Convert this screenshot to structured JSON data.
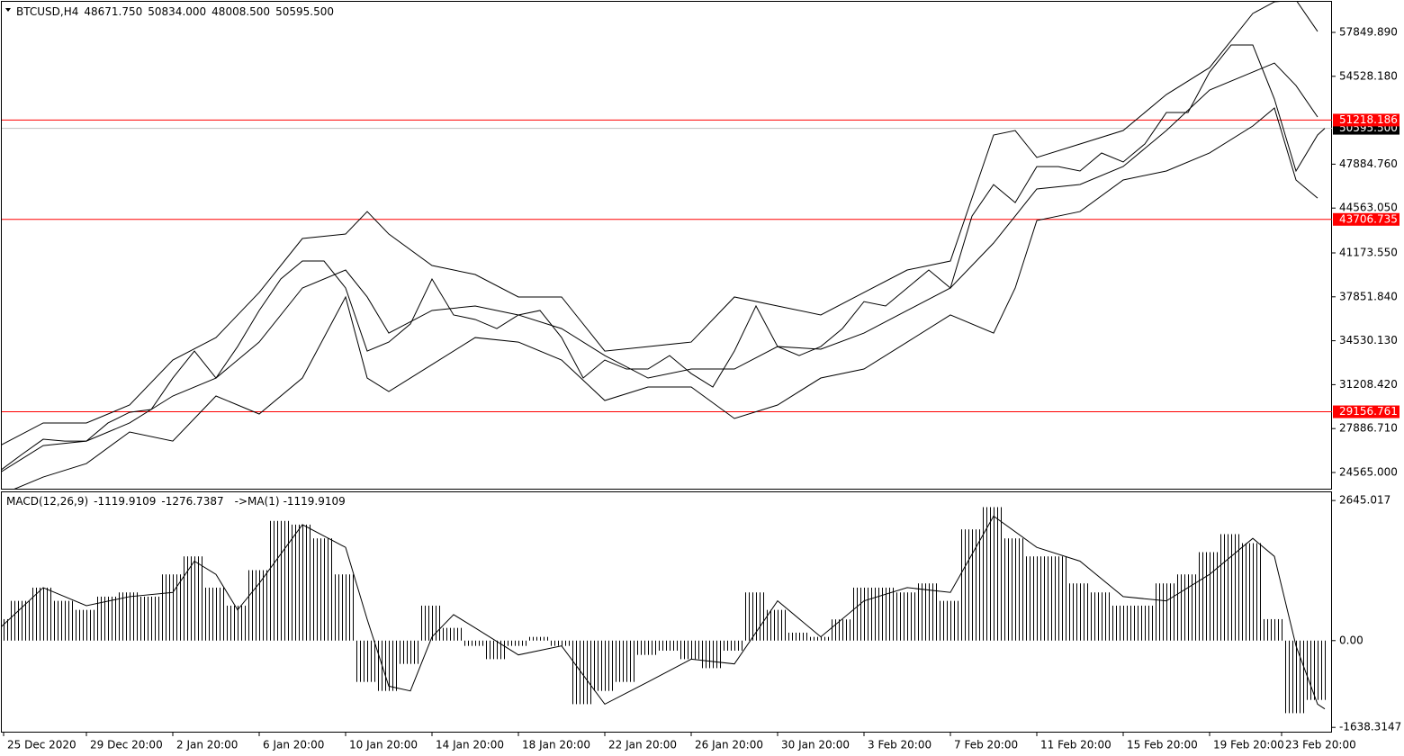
{
  "chart_data": [
    {
      "type": "line",
      "title": "BTCUSD,H4",
      "header_values": [
        {
          "value": 48671.75,
          "label": "48671.750"
        },
        {
          "value": 50834,
          "label": "50834.000"
        },
        {
          "value": 48008.5,
          "label": "48008.500"
        },
        {
          "value": 50595.5,
          "label": "50595.500"
        }
      ],
      "xlim": [
        0,
        370
      ],
      "ylim": [
        23340,
        60164
      ],
      "xticks": [
        {
          "value": 1,
          "label": "25 Dec 2020"
        },
        {
          "value": 24,
          "label": "29 Dec 20:00"
        },
        {
          "value": 48,
          "label": "2 Jan 20:00"
        },
        {
          "value": 72,
          "label": "6 Jan 20:00"
        },
        {
          "value": 96,
          "label": "10 Jan 20:00"
        },
        {
          "value": 120,
          "label": "14 Jan 20:00"
        },
        {
          "value": 144,
          "label": "18 Jan 20:00"
        },
        {
          "value": 168,
          "label": "22 Jan 20:00"
        },
        {
          "value": 192,
          "label": "26 Jan 20:00"
        },
        {
          "value": 216,
          "label": "30 Jan 20:00"
        },
        {
          "value": 240,
          "label": "3 Feb 20:00"
        },
        {
          "value": 264,
          "label": "7 Feb 20:00"
        },
        {
          "value": 288,
          "label": "11 Feb 20:00"
        },
        {
          "value": 312,
          "label": "15 Feb 20:00"
        },
        {
          "value": 336,
          "label": "19 Feb 20:00"
        },
        {
          "value": 356,
          "label": "23 Feb 20:00"
        }
      ],
      "yticks": [
        {
          "value": 57849.89,
          "label": "57849.890"
        },
        {
          "value": 54528.18,
          "label": "54528.180"
        },
        {
          "value": 47884.76,
          "label": "47884.760"
        },
        {
          "value": 44563.05,
          "label": "44563.050"
        },
        {
          "value": 41173.55,
          "label": "41173.550"
        },
        {
          "value": 37851.84,
          "label": "37851.840"
        },
        {
          "value": 34530.13,
          "label": "34530.130"
        },
        {
          "value": 31208.42,
          "label": "31208.420"
        },
        {
          "value": 27886.71,
          "label": "27886.710"
        },
        {
          "value": 24565,
          "label": "24565.000"
        }
      ],
      "hlines": [
        {
          "value": 50595.5,
          "label": "50595.500",
          "color": "#c0c0c0"
        },
        {
          "value": 51218.186,
          "color": "#ff0000"
        },
        {
          "value": 43706.735,
          "color": "#ff0000"
        },
        {
          "value": 29156.761,
          "color": "#ff0000"
        }
      ],
      "series": [
        {
          "color": "#000000",
          "x": [
            0,
            6,
            12,
            18,
            24,
            30,
            36,
            42,
            48,
            54,
            60,
            66,
            72,
            78,
            84,
            90,
            96,
            102,
            108,
            114,
            120,
            126,
            132,
            138,
            144,
            150,
            156,
            162,
            168,
            174,
            180,
            186,
            192,
            198,
            204,
            210,
            216,
            222,
            228,
            234,
            240,
            246,
            252,
            258,
            264,
            270,
            276,
            282,
            288,
            294,
            300,
            306,
            312,
            318,
            324,
            330,
            336,
            342,
            348,
            354,
            360,
            366,
            368
          ],
          "values": [
            24700,
            25920,
            27080,
            26940,
            26940,
            28310,
            29120,
            29330,
            31710,
            33750,
            31710,
            34090,
            36820,
            39200,
            40560,
            40560,
            38520,
            33750,
            34430,
            35800,
            39200,
            36480,
            36140,
            35450,
            36480,
            36820,
            34770,
            31710,
            33070,
            32390,
            32390,
            33410,
            32050,
            31030,
            33750,
            37160,
            34090,
            33410,
            34090,
            35450,
            37490,
            37160,
            38520,
            39880,
            38520,
            43960,
            46340,
            44980,
            47700,
            47700,
            47370,
            48730,
            48050,
            49410,
            51790,
            51790,
            54850,
            56900,
            56900,
            52810,
            47370,
            50090,
            50595.5
          ]
        },
        {
          "color": "#000000",
          "x": [
            0,
            12,
            24,
            36,
            48,
            60,
            72,
            84,
            96,
            102,
            108,
            120,
            132,
            144,
            156,
            168,
            180,
            192,
            204,
            216,
            228,
            240,
            252,
            264,
            276,
            282,
            288,
            300,
            312,
            324,
            336,
            348,
            354,
            360,
            366
          ],
          "values": [
            26600,
            28310,
            28310,
            29670,
            33070,
            34770,
            38180,
            42260,
            42600,
            44300,
            42600,
            40220,
            39540,
            37840,
            37840,
            33750,
            34090,
            34430,
            37840,
            37160,
            36480,
            38180,
            39880,
            40560,
            50090,
            50430,
            48390,
            49410,
            50430,
            53150,
            55190,
            59280,
            60160,
            60300,
            57920
          ]
        },
        {
          "color": "#000000",
          "x": [
            0,
            12,
            24,
            36,
            48,
            60,
            72,
            84,
            96,
            102,
            108,
            120,
            132,
            144,
            156,
            168,
            180,
            192,
            204,
            216,
            228,
            240,
            252,
            264,
            276,
            282,
            288,
            300,
            312,
            324,
            336,
            348,
            354,
            360,
            366
          ],
          "values": [
            24560,
            26600,
            26940,
            28310,
            30350,
            31710,
            34430,
            38520,
            39880,
            37840,
            35110,
            36820,
            37160,
            36480,
            35450,
            33410,
            31710,
            32390,
            32390,
            34090,
            33890,
            35110,
            36820,
            38520,
            41920,
            43960,
            46010,
            46350,
            47710,
            50430,
            53490,
            54850,
            55530,
            53830,
            51450
          ]
        },
        {
          "color": "#000000",
          "x": [
            0,
            12,
            24,
            36,
            48,
            60,
            72,
            84,
            96,
            102,
            108,
            120,
            132,
            144,
            156,
            168,
            180,
            192,
            204,
            216,
            228,
            240,
            252,
            264,
            276,
            282,
            288,
            300,
            312,
            324,
            336,
            348,
            354,
            360,
            366
          ],
          "values": [
            22860,
            24220,
            25240,
            27630,
            26940,
            30350,
            28990,
            31710,
            37840,
            31710,
            30690,
            32730,
            34770,
            34430,
            33070,
            30010,
            31030,
            31030,
            28650,
            29670,
            31710,
            32390,
            34430,
            36480,
            35110,
            38520,
            43620,
            44300,
            46690,
            47370,
            48730,
            50770,
            52130,
            46690,
            45320
          ]
        }
      ]
    },
    {
      "type": "macd",
      "title": "MACD(12,26,9)",
      "header_values": [
        -1119.9109,
        -1276.7387
      ],
      "ma_label": "->MA(1)",
      "ma_value": -1119.9109,
      "xlim": [
        0,
        370
      ],
      "ylim": [
        -1720,
        2800
      ],
      "yticks": [
        2645.017,
        {
          "value": 0,
          "label": "0.00"
        },
        -1638.3147
      ],
      "series": [
        {
          "color": "#000000",
          "x": [
            0,
            6,
            12,
            18,
            24,
            30,
            36,
            42,
            48,
            54,
            60,
            66,
            72,
            78,
            84,
            90,
            96,
            102,
            108,
            114,
            120,
            126,
            132,
            138,
            144,
            150,
            156,
            162,
            168,
            174,
            180,
            186,
            192,
            198,
            204,
            210,
            216,
            222,
            228,
            234,
            240,
            246,
            252,
            258,
            264,
            270,
            276,
            282,
            288,
            294,
            300,
            306,
            312,
            318,
            324,
            330,
            336,
            342,
            348,
            354,
            360,
            366
          ],
          "values": [
            405,
            750,
            1000,
            750,
            580,
            830,
            910,
            830,
            1250,
            1590,
            1000,
            660,
            1330,
            2260,
            2190,
            1930,
            1250,
            -780,
            -950,
            -440,
            660,
            240,
            -100,
            -350,
            -100,
            70,
            -100,
            -1200,
            -950,
            -780,
            -270,
            -190,
            -350,
            -520,
            -190,
            910,
            580,
            150,
            70,
            400,
            1000,
            1000,
            910,
            1080,
            750,
            2100,
            2520,
            1930,
            1590,
            1590,
            1080,
            910,
            660,
            660,
            1080,
            1250,
            1670,
            2010,
            1840,
            405,
            -1370,
            -1120
          ]
        },
        {
          "color": "#000000",
          "x": [
            0,
            12,
            24,
            36,
            48,
            54,
            60,
            66,
            72,
            84,
            96,
            102,
            108,
            114,
            120,
            126,
            132,
            144,
            156,
            168,
            180,
            192,
            204,
            216,
            228,
            240,
            252,
            264,
            276,
            288,
            300,
            312,
            324,
            336,
            348,
            354,
            360,
            366,
            368
          ],
          "values": [
            240,
            1000,
            660,
            830,
            910,
            1500,
            1250,
            580,
            1080,
            2190,
            1760,
            400,
            -860,
            -950,
            70,
            490,
            240,
            -270,
            -100,
            -1200,
            -780,
            -350,
            -440,
            750,
            70,
            750,
            1000,
            910,
            2350,
            1760,
            1500,
            830,
            750,
            1250,
            1930,
            1590,
            -100,
            -1200,
            -1290
          ]
        }
      ]
    }
  ]
}
